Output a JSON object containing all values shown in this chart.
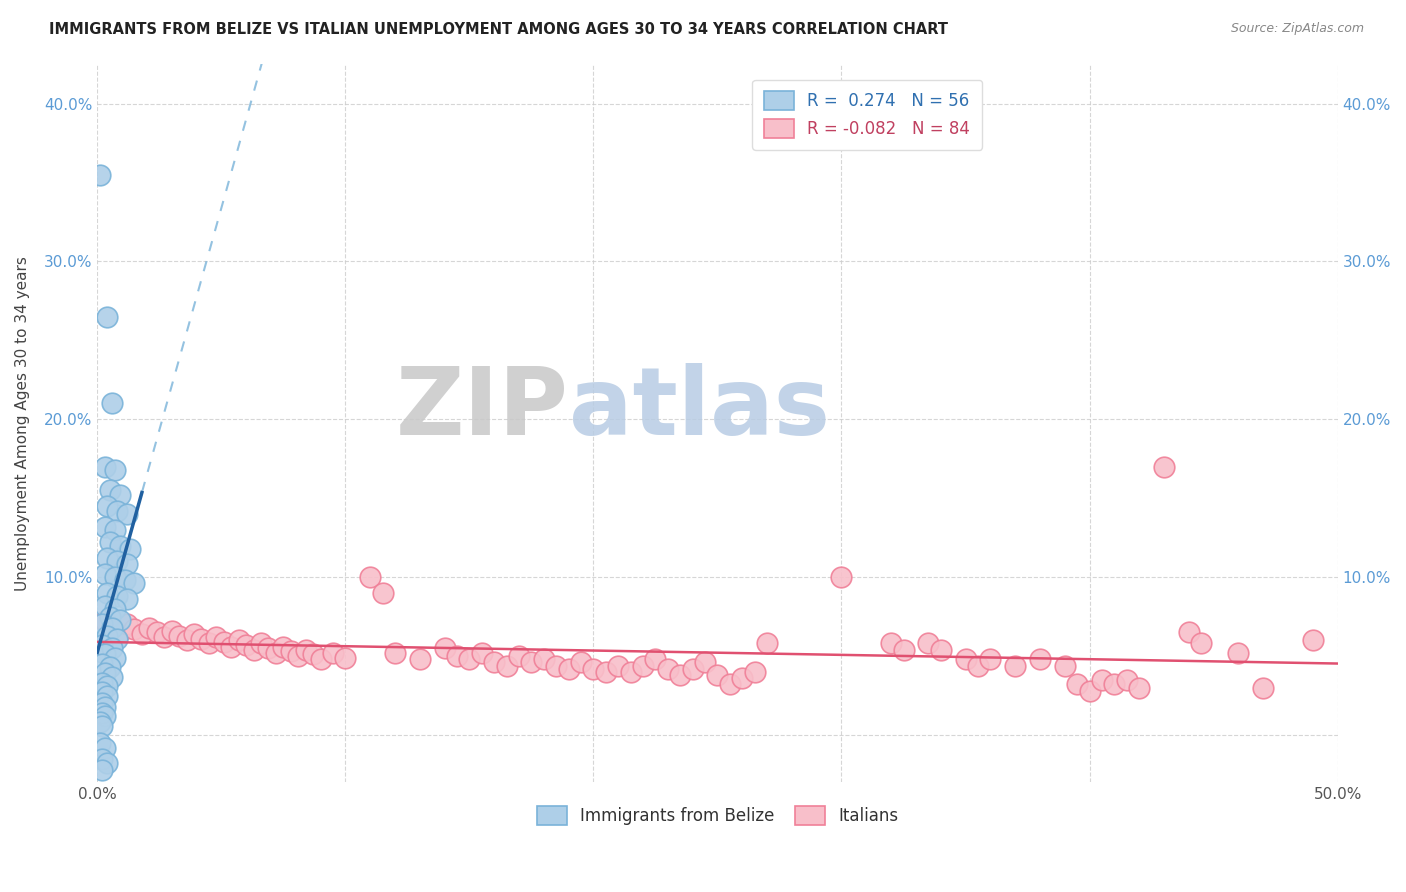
{
  "title": "IMMIGRANTS FROM BELIZE VS ITALIAN UNEMPLOYMENT AMONG AGES 30 TO 34 YEARS CORRELATION CHART",
  "source": "Source: ZipAtlas.com",
  "ylabel": "Unemployment Among Ages 30 to 34 years",
  "xlim": [
    0,
    0.5
  ],
  "ylim": [
    -0.03,
    0.425
  ],
  "yticks": [
    0.0,
    0.1,
    0.2,
    0.3,
    0.4
  ],
  "ytick_labels": [
    "",
    "10.0%",
    "20.0%",
    "30.0%",
    "40.0%"
  ],
  "xticks": [
    0.0,
    0.1,
    0.2,
    0.3,
    0.4,
    0.5
  ],
  "xtick_labels": [
    "0.0%",
    "",
    "",
    "",
    "",
    "50.0%"
  ],
  "blue_color": "#7ab3d9",
  "blue_fill": "#aecfe8",
  "pink_color": "#f08098",
  "pink_fill": "#f8bfca",
  "trend_blue_solid_color": "#2060a0",
  "trend_blue_dash_color": "#7ab3d9",
  "trend_pink_color": "#e05070",
  "watermark_zip": "ZIP",
  "watermark_atlas": "atlas",
  "blue_dots": [
    [
      0.001,
      0.355
    ],
    [
      0.004,
      0.265
    ],
    [
      0.006,
      0.21
    ],
    [
      0.003,
      0.17
    ],
    [
      0.007,
      0.168
    ],
    [
      0.005,
      0.155
    ],
    [
      0.009,
      0.152
    ],
    [
      0.004,
      0.145
    ],
    [
      0.008,
      0.142
    ],
    [
      0.012,
      0.14
    ],
    [
      0.003,
      0.132
    ],
    [
      0.007,
      0.13
    ],
    [
      0.005,
      0.122
    ],
    [
      0.009,
      0.12
    ],
    [
      0.013,
      0.118
    ],
    [
      0.004,
      0.112
    ],
    [
      0.008,
      0.11
    ],
    [
      0.012,
      0.108
    ],
    [
      0.003,
      0.102
    ],
    [
      0.007,
      0.1
    ],
    [
      0.011,
      0.098
    ],
    [
      0.015,
      0.096
    ],
    [
      0.004,
      0.09
    ],
    [
      0.008,
      0.088
    ],
    [
      0.012,
      0.086
    ],
    [
      0.003,
      0.082
    ],
    [
      0.007,
      0.08
    ],
    [
      0.005,
      0.075
    ],
    [
      0.009,
      0.073
    ],
    [
      0.002,
      0.07
    ],
    [
      0.006,
      0.068
    ],
    [
      0.004,
      0.063
    ],
    [
      0.008,
      0.061
    ],
    [
      0.002,
      0.057
    ],
    [
      0.006,
      0.055
    ],
    [
      0.003,
      0.051
    ],
    [
      0.007,
      0.049
    ],
    [
      0.002,
      0.045
    ],
    [
      0.005,
      0.043
    ],
    [
      0.003,
      0.039
    ],
    [
      0.006,
      0.037
    ],
    [
      0.002,
      0.033
    ],
    [
      0.004,
      0.031
    ],
    [
      0.002,
      0.027
    ],
    [
      0.004,
      0.025
    ],
    [
      0.002,
      0.02
    ],
    [
      0.003,
      0.018
    ],
    [
      0.002,
      0.014
    ],
    [
      0.003,
      0.012
    ],
    [
      0.001,
      0.008
    ],
    [
      0.002,
      0.006
    ],
    [
      0.001,
      -0.005
    ],
    [
      0.003,
      -0.008
    ],
    [
      0.002,
      -0.015
    ],
    [
      0.004,
      -0.018
    ],
    [
      0.002,
      -0.022
    ]
  ],
  "pink_dots": [
    [
      0.003,
      0.072
    ],
    [
      0.006,
      0.068
    ],
    [
      0.009,
      0.065
    ],
    [
      0.012,
      0.07
    ],
    [
      0.015,
      0.067
    ],
    [
      0.018,
      0.064
    ],
    [
      0.021,
      0.068
    ],
    [
      0.024,
      0.065
    ],
    [
      0.027,
      0.062
    ],
    [
      0.03,
      0.066
    ],
    [
      0.033,
      0.063
    ],
    [
      0.036,
      0.06
    ],
    [
      0.039,
      0.064
    ],
    [
      0.042,
      0.061
    ],
    [
      0.045,
      0.058
    ],
    [
      0.048,
      0.062
    ],
    [
      0.051,
      0.059
    ],
    [
      0.054,
      0.056
    ],
    [
      0.057,
      0.06
    ],
    [
      0.06,
      0.057
    ],
    [
      0.063,
      0.054
    ],
    [
      0.066,
      0.058
    ],
    [
      0.069,
      0.055
    ],
    [
      0.072,
      0.052
    ],
    [
      0.075,
      0.056
    ],
    [
      0.078,
      0.053
    ],
    [
      0.081,
      0.05
    ],
    [
      0.084,
      0.054
    ],
    [
      0.087,
      0.051
    ],
    [
      0.09,
      0.048
    ],
    [
      0.095,
      0.052
    ],
    [
      0.1,
      0.049
    ],
    [
      0.11,
      0.1
    ],
    [
      0.115,
      0.09
    ],
    [
      0.12,
      0.052
    ],
    [
      0.13,
      0.048
    ],
    [
      0.14,
      0.055
    ],
    [
      0.145,
      0.05
    ],
    [
      0.15,
      0.048
    ],
    [
      0.155,
      0.052
    ],
    [
      0.16,
      0.046
    ],
    [
      0.165,
      0.044
    ],
    [
      0.17,
      0.05
    ],
    [
      0.175,
      0.046
    ],
    [
      0.18,
      0.048
    ],
    [
      0.185,
      0.044
    ],
    [
      0.19,
      0.042
    ],
    [
      0.195,
      0.046
    ],
    [
      0.2,
      0.042
    ],
    [
      0.205,
      0.04
    ],
    [
      0.21,
      0.044
    ],
    [
      0.215,
      0.04
    ],
    [
      0.22,
      0.044
    ],
    [
      0.225,
      0.048
    ],
    [
      0.23,
      0.042
    ],
    [
      0.235,
      0.038
    ],
    [
      0.24,
      0.042
    ],
    [
      0.245,
      0.046
    ],
    [
      0.25,
      0.038
    ],
    [
      0.255,
      0.032
    ],
    [
      0.26,
      0.036
    ],
    [
      0.265,
      0.04
    ],
    [
      0.27,
      0.058
    ],
    [
      0.3,
      0.1
    ],
    [
      0.32,
      0.058
    ],
    [
      0.325,
      0.054
    ],
    [
      0.335,
      0.058
    ],
    [
      0.34,
      0.054
    ],
    [
      0.35,
      0.048
    ],
    [
      0.355,
      0.044
    ],
    [
      0.36,
      0.048
    ],
    [
      0.37,
      0.044
    ],
    [
      0.38,
      0.048
    ],
    [
      0.39,
      0.044
    ],
    [
      0.395,
      0.032
    ],
    [
      0.4,
      0.028
    ],
    [
      0.405,
      0.035
    ],
    [
      0.41,
      0.032
    ],
    [
      0.415,
      0.035
    ],
    [
      0.42,
      0.03
    ],
    [
      0.43,
      0.17
    ],
    [
      0.44,
      0.065
    ],
    [
      0.445,
      0.058
    ],
    [
      0.46,
      0.052
    ],
    [
      0.47,
      0.03
    ],
    [
      0.49,
      0.06
    ]
  ]
}
